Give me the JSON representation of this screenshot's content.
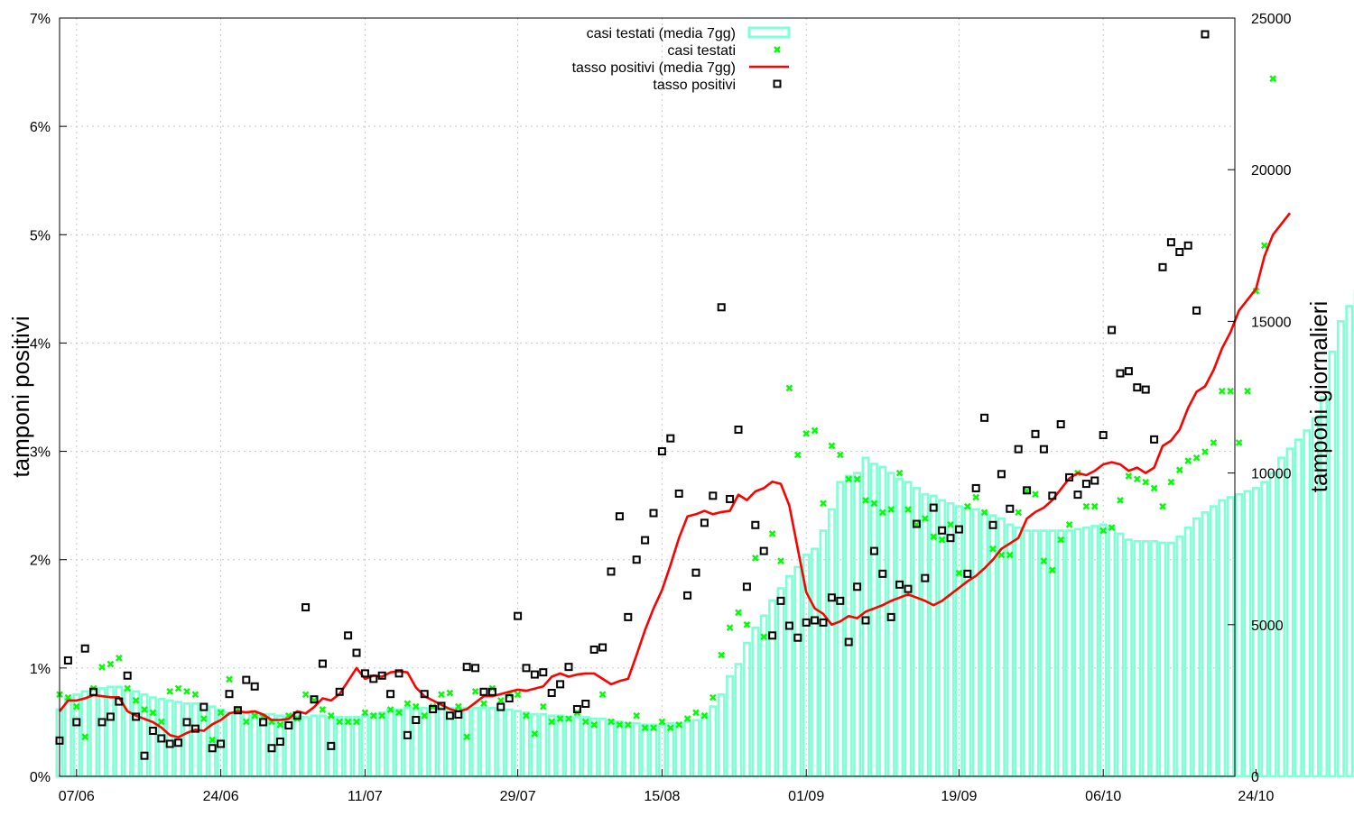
{
  "chart_data": {
    "type": "bar",
    "xlabel": "",
    "ylabel": "tamponi positivi",
    "y2label": "tamponi giornalieri",
    "x_ticks": [
      "07/06",
      "24/06",
      "11/07",
      "29/07",
      "15/08",
      "01/09",
      "19/09",
      "06/10",
      "24/10"
    ],
    "ylim": [
      0,
      7
    ],
    "y_ticks": [
      "0%",
      "1%",
      "2%",
      "3%",
      "4%",
      "5%",
      "6%",
      "7%"
    ],
    "y2lim": [
      0,
      25000
    ],
    "y2_ticks": [
      "0",
      "5000",
      "10000",
      "15000",
      "20000",
      "25000"
    ],
    "grid": true,
    "legend_position": "top-center",
    "colors": {
      "bars": "#7fffd4",
      "cases_points": "#00ff00",
      "rate_line": "#ff0000",
      "rate_points": "#000000"
    },
    "series": [
      {
        "name": "casi testati (media 7gg)",
        "axis": "right",
        "type": "bar",
        "values": [
          2200,
          2600,
          2700,
          2800,
          2900,
          2900,
          2950,
          2950,
          2850,
          2800,
          2700,
          2600,
          2550,
          2500,
          2450,
          2400,
          2400,
          2400,
          2300,
          2200,
          2100,
          2100,
          2100,
          2100,
          2050,
          2050,
          2000,
          2000,
          2000,
          1950,
          2000,
          2000,
          1950,
          1950,
          1950,
          1950,
          2000,
          2050,
          2100,
          2200,
          2200,
          2250,
          2250,
          2250,
          2250,
          2250,
          2250,
          2250,
          2250,
          2250,
          2250,
          2250,
          2200,
          2200,
          2150,
          2100,
          2050,
          2050,
          2000,
          2000,
          1950,
          1950,
          1950,
          1900,
          1900,
          1850,
          1800,
          1750,
          1750,
          1700,
          1700,
          1700,
          1750,
          1750,
          1800,
          1850,
          2000,
          2300,
          2700,
          3300,
          3700,
          4400,
          4900,
          5300,
          5800,
          6200,
          6600,
          6900,
          7300,
          7500,
          8100,
          8800,
          9700,
          9900,
          10000,
          10500,
          10300,
          10200,
          10000,
          9800,
          9700,
          9500,
          9300,
          9250,
          9100,
          9000,
          8900,
          8850,
          8800,
          8700,
          8600,
          8500,
          8300,
          8200,
          8100,
          8100,
          8100,
          8100,
          8100,
          8100,
          8150,
          8200,
          8250,
          8300,
          8200,
          8000,
          7800,
          7750,
          7750,
          7750,
          7700,
          7700,
          7900,
          8200,
          8500,
          8700,
          8900,
          9100,
          9200,
          9300,
          9400,
          9500,
          9700,
          10000,
          10500,
          10800,
          11100,
          11400,
          11800,
          12500,
          14000,
          15000,
          15500,
          16000,
          17200
        ]
      },
      {
        "name": "casi testati",
        "axis": "right",
        "type": "scatter",
        "values": [
          2700,
          2600,
          2300,
          1300,
          2900,
          3600,
          3700,
          3900,
          2900,
          2500,
          2200,
          2100,
          1800,
          2800,
          2900,
          2800,
          2700,
          1900,
          1200,
          2100,
          3200,
          2200,
          1800,
          2000,
          1950,
          1800,
          1700,
          2000,
          1900,
          2700,
          2500,
          2200,
          2000,
          1800,
          1800,
          1800,
          2100,
          2000,
          2000,
          2200,
          2100,
          2400,
          2300,
          2000,
          2300,
          2700,
          2750,
          2300,
          1300,
          2800,
          2400,
          2900,
          2500,
          2700,
          2700,
          2000,
          1400,
          2300,
          1800,
          1900,
          1900,
          2100,
          1800,
          1700,
          2700,
          1800,
          1700,
          1700,
          2000,
          1600,
          1600,
          1800,
          1600,
          1700,
          1900,
          2100,
          2000,
          2600,
          4000,
          4900,
          5400,
          5000,
          7200,
          4600,
          8000,
          7100,
          12800,
          10600,
          11300,
          11400,
          9000,
          10900,
          10600,
          9800,
          9800,
          9100,
          9000,
          8700,
          8800,
          10000,
          8800,
          8300,
          8500,
          7900,
          7800,
          8300,
          6700,
          8900,
          9200,
          8700,
          7500,
          7300,
          7300,
          8700,
          9400,
          9300,
          7100,
          6800,
          7800,
          8300,
          10000,
          8900,
          8900,
          8100,
          8200,
          9100,
          9900,
          9800,
          9700,
          9500,
          8900,
          9700,
          10100,
          10400,
          10500,
          10700,
          11000,
          12700,
          12700,
          11000,
          12700,
          16000,
          17500,
          23000
        ]
      },
      {
        "name": "tasso positivi (media 7gg)",
        "axis": "left",
        "type": "line",
        "values": [
          0.6,
          0.7,
          0.7,
          0.72,
          0.75,
          0.74,
          0.73,
          0.73,
          0.6,
          0.56,
          0.53,
          0.5,
          0.45,
          0.38,
          0.36,
          0.4,
          0.43,
          0.42,
          0.48,
          0.52,
          0.58,
          0.6,
          0.59,
          0.6,
          0.57,
          0.52,
          0.52,
          0.53,
          0.6,
          0.58,
          0.64,
          0.72,
          0.7,
          0.76,
          0.88,
          1.0,
          0.9,
          0.93,
          0.92,
          0.96,
          0.97,
          0.96,
          0.82,
          0.74,
          0.7,
          0.66,
          0.62,
          0.6,
          0.62,
          0.68,
          0.74,
          0.74,
          0.76,
          0.78,
          0.8,
          0.79,
          0.81,
          0.83,
          0.92,
          0.95,
          0.92,
          0.94,
          0.95,
          0.95,
          0.9,
          0.85,
          0.88,
          0.9,
          1.12,
          1.35,
          1.55,
          1.72,
          1.95,
          2.2,
          2.4,
          2.42,
          2.45,
          2.42,
          2.44,
          2.45,
          2.6,
          2.55,
          2.63,
          2.66,
          2.72,
          2.7,
          2.5,
          2.1,
          1.7,
          1.55,
          1.5,
          1.4,
          1.43,
          1.48,
          1.46,
          1.52,
          1.55,
          1.58,
          1.62,
          1.65,
          1.68,
          1.65,
          1.62,
          1.58,
          1.62,
          1.68,
          1.74,
          1.8,
          1.85,
          1.92,
          2.0,
          2.1,
          2.15,
          2.2,
          2.38,
          2.44,
          2.48,
          2.55,
          2.65,
          2.75,
          2.8,
          2.78,
          2.82,
          2.88,
          2.9,
          2.88,
          2.82,
          2.85,
          2.8,
          2.85,
          3.05,
          3.1,
          3.2,
          3.4,
          3.55,
          3.6,
          3.75,
          3.95,
          4.1,
          4.3,
          4.4,
          4.5,
          4.8,
          5.0,
          5.1,
          5.2
        ]
      },
      {
        "name": "tasso positivi",
        "axis": "left",
        "type": "scatter",
        "values": [
          0.33,
          1.07,
          0.5,
          1.18,
          0.78,
          0.5,
          0.55,
          0.69,
          0.93,
          0.55,
          0.19,
          0.42,
          0.35,
          0.3,
          0.31,
          0.5,
          0.44,
          0.64,
          0.26,
          0.3,
          0.76,
          0.61,
          0.89,
          0.83,
          0.5,
          0.26,
          0.32,
          0.47,
          0.56,
          1.56,
          0.71,
          1.04,
          0.28,
          0.78,
          1.3,
          1.14,
          0.95,
          0.9,
          0.93,
          0.76,
          0.95,
          0.38,
          0.52,
          0.76,
          0.62,
          0.65,
          0.56,
          0.57,
          1.01,
          1.0,
          0.78,
          0.78,
          0.64,
          0.72,
          1.48,
          1.0,
          0.94,
          0.96,
          0.77,
          0.85,
          1.01,
          0.62,
          0.67,
          1.17,
          1.19,
          1.89,
          2.4,
          1.47,
          2.0,
          2.18,
          2.43,
          3.0,
          3.12,
          2.61,
          1.67,
          1.88,
          2.34,
          2.59,
          4.33,
          2.56,
          3.2,
          1.75,
          2.32,
          2.08,
          1.3,
          1.62,
          1.39,
          1.28,
          1.42,
          1.44,
          1.42,
          1.65,
          1.62,
          1.24,
          1.75,
          1.44,
          2.08,
          1.87,
          1.47,
          1.77,
          1.73,
          2.33,
          1.83,
          2.48,
          2.27,
          2.2,
          2.28,
          1.87,
          2.66,
          3.31,
          2.32,
          2.79,
          2.47,
          3.02,
          2.64,
          3.16,
          3.02,
          2.59,
          3.25,
          2.76,
          2.6,
          2.7,
          2.73,
          3.15,
          4.12,
          3.72,
          3.74,
          3.59,
          3.57,
          3.11,
          4.7,
          4.93,
          4.84,
          4.9,
          4.3,
          6.85
        ]
      }
    ]
  }
}
